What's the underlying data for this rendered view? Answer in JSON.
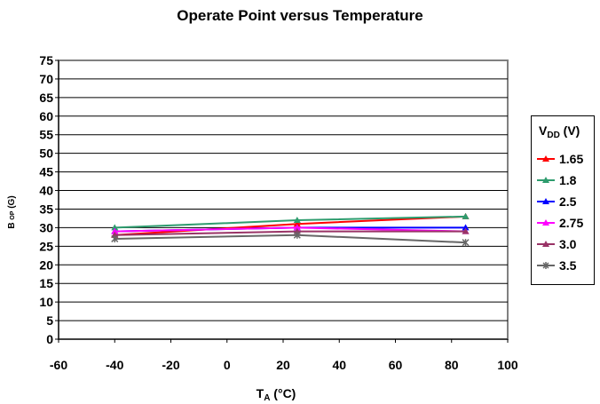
{
  "chart_data": {
    "type": "line",
    "title": "Operate Point versus Temperature",
    "xlabel_main": "T",
    "xlabel_sub": "A",
    "xlabel_rest": " (°C)",
    "ylabel_main": "B",
    "ylabel_sub": "OP",
    "ylabel_rest": "(G)",
    "xlim": [
      -60,
      100
    ],
    "ylim": [
      0,
      75
    ],
    "xticks": [
      -60,
      -40,
      -20,
      0,
      20,
      40,
      60,
      80,
      100
    ],
    "yticks": [
      0,
      5,
      10,
      15,
      20,
      25,
      30,
      35,
      40,
      45,
      50,
      55,
      60,
      65,
      70,
      75
    ],
    "grid": "horizontal",
    "legend_position": "right",
    "legend_title_main": "V",
    "legend_title_sub": "DD",
    "legend_title_rest": " (V)",
    "x": [
      -40,
      25,
      85
    ],
    "series": [
      {
        "name": "1.65",
        "values": [
          28,
          31,
          33
        ],
        "color": "#ff0000",
        "marker": "triangle"
      },
      {
        "name": "1.8",
        "values": [
          30,
          32,
          33
        ],
        "color": "#2e9c6e",
        "marker": "triangle"
      },
      {
        "name": "2.5",
        "values": [
          29,
          30,
          30
        ],
        "color": "#0000ff",
        "marker": "triangle"
      },
      {
        "name": "2.75",
        "values": [
          29,
          30,
          29
        ],
        "color": "#ff00ff",
        "marker": "triangle"
      },
      {
        "name": "3.0",
        "values": [
          28,
          29,
          29
        ],
        "color": "#993366",
        "marker": "triangle"
      },
      {
        "name": "3.5",
        "values": [
          27,
          28,
          26
        ],
        "color": "#666666",
        "marker": "star"
      }
    ]
  }
}
